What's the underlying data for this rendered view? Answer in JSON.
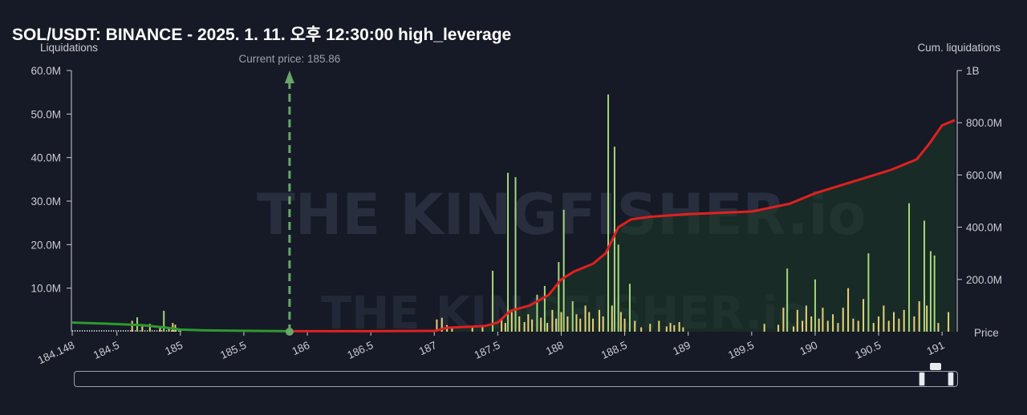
{
  "header": {
    "title": "SOL/USDT: BINANCE - 2025. 1. 11. 오후 12:30:00 high_leverage"
  },
  "watermark": "THE KINGFISHER.io",
  "colors": {
    "background": "#161a26",
    "cum_long": "#2e9a2e",
    "cum_short": "#e02020",
    "bar_green": "#a4d67c",
    "bar_yellow": "#e8d27a",
    "current_price": "#6aa56a"
  },
  "chart_data": {
    "type": "bar",
    "title": "SOL/USDT: BINANCE - 2025. 1. 11. 오후 12:30:00 high_leverage",
    "ylabel": "Liquidations",
    "y2label": "Cum. liquidations",
    "xlabel": "Price",
    "xlim": [
      184.148,
      191.1
    ],
    "ylim": [
      0,
      60000000
    ],
    "y2lim": [
      0,
      1000000000
    ],
    "x_ticks": [
      "184.148",
      "184.5",
      "185",
      "185.5",
      "186",
      "186.5",
      "187",
      "187.5",
      "188",
      "188.5",
      "189",
      "189.5",
      "190",
      "190.5",
      "191"
    ],
    "x_tick_values": [
      184.148,
      184.5,
      185,
      185.5,
      186,
      186.5,
      187,
      187.5,
      188,
      188.5,
      189,
      189.5,
      190,
      190.5,
      191
    ],
    "y_ticks": [
      "60.0M",
      "50.0M",
      "40.0M",
      "30.0M",
      "20.0M",
      "10.0M"
    ],
    "y_tick_values": [
      60000000,
      50000000,
      40000000,
      30000000,
      20000000,
      10000000
    ],
    "y2_ticks": [
      "1B",
      "800.0M",
      "600.0M",
      "400.0M",
      "200.0M"
    ],
    "y2_tick_values": [
      1000000000,
      800000000,
      600000000,
      400000000,
      200000000
    ],
    "current_price": 185.86,
    "current_price_label": "Current price: 185.86",
    "bars": [
      {
        "x": 184.62,
        "v": 2500000.0,
        "c": "y"
      },
      {
        "x": 184.66,
        "v": 3300000.0,
        "c": "g"
      },
      {
        "x": 184.7,
        "v": 1200000.0,
        "c": "y"
      },
      {
        "x": 184.76,
        "v": 1800000.0,
        "c": "y"
      },
      {
        "x": 184.84,
        "v": 1000000.0,
        "c": "y"
      },
      {
        "x": 184.87,
        "v": 4800000.0,
        "c": "g"
      },
      {
        "x": 184.91,
        "v": 800000.0,
        "c": "y"
      },
      {
        "x": 184.94,
        "v": 2000000.0,
        "c": "y"
      },
      {
        "x": 184.96,
        "v": 1600000.0,
        "c": "y"
      },
      {
        "x": 185.0,
        "v": 500000.0,
        "c": "y"
      },
      {
        "x": 187.02,
        "v": 2800000.0,
        "c": "y"
      },
      {
        "x": 187.06,
        "v": 3200000.0,
        "c": "y"
      },
      {
        "x": 187.1,
        "v": 1500000.0,
        "c": "y"
      },
      {
        "x": 187.14,
        "v": 1000000.0,
        "c": "y"
      },
      {
        "x": 187.3,
        "v": 900000.0,
        "c": "y"
      },
      {
        "x": 187.38,
        "v": 1200000.0,
        "c": "y"
      },
      {
        "x": 187.46,
        "v": 14000000.0,
        "c": "g"
      },
      {
        "x": 187.53,
        "v": 3000000.0,
        "c": "y"
      },
      {
        "x": 187.56,
        "v": 2000000.0,
        "c": "y"
      },
      {
        "x": 187.58,
        "v": 36500000.0,
        "c": "g"
      },
      {
        "x": 187.61,
        "v": 4500000.0,
        "c": "y"
      },
      {
        "x": 187.64,
        "v": 35500000.0,
        "c": "g"
      },
      {
        "x": 187.67,
        "v": 3500000.0,
        "c": "y"
      },
      {
        "x": 187.71,
        "v": 2200000.0,
        "c": "y"
      },
      {
        "x": 187.74,
        "v": 4000000.0,
        "c": "y"
      },
      {
        "x": 187.77,
        "v": 2800000.0,
        "c": "y"
      },
      {
        "x": 187.81,
        "v": 8500000.0,
        "c": "g"
      },
      {
        "x": 187.84,
        "v": 3200000.0,
        "c": "y"
      },
      {
        "x": 187.87,
        "v": 10500000.0,
        "c": "g"
      },
      {
        "x": 187.89,
        "v": 2000000.0,
        "c": "y"
      },
      {
        "x": 187.93,
        "v": 5000000.0,
        "c": "y"
      },
      {
        "x": 187.96,
        "v": 3000000.0,
        "c": "y"
      },
      {
        "x": 187.98,
        "v": 16000000.0,
        "c": "g"
      },
      {
        "x": 188.0,
        "v": 4500000.0,
        "c": "y"
      },
      {
        "x": 188.02,
        "v": 28000000.0,
        "c": "g"
      },
      {
        "x": 188.05,
        "v": 3500000.0,
        "c": "y"
      },
      {
        "x": 188.09,
        "v": 7000000.0,
        "c": "g"
      },
      {
        "x": 188.12,
        "v": 4000000.0,
        "c": "y"
      },
      {
        "x": 188.15,
        "v": 3000000.0,
        "c": "y"
      },
      {
        "x": 188.19,
        "v": 6000000.0,
        "c": "y"
      },
      {
        "x": 188.22,
        "v": 4500000.0,
        "c": "y"
      },
      {
        "x": 188.25,
        "v": 3000000.0,
        "c": "y"
      },
      {
        "x": 188.3,
        "v": 5000000.0,
        "c": "y"
      },
      {
        "x": 188.33,
        "v": 3500000.0,
        "c": "y"
      },
      {
        "x": 188.37,
        "v": 54500000.0,
        "c": "g"
      },
      {
        "x": 188.4,
        "v": 6000000.0,
        "c": "y"
      },
      {
        "x": 188.42,
        "v": 42500000.0,
        "c": "g"
      },
      {
        "x": 188.45,
        "v": 20000000.0,
        "c": "g"
      },
      {
        "x": 188.47,
        "v": 4500000.0,
        "c": "y"
      },
      {
        "x": 188.5,
        "v": 3000000.0,
        "c": "y"
      },
      {
        "x": 188.54,
        "v": 11000000.0,
        "c": "g"
      },
      {
        "x": 188.58,
        "v": 2500000.0,
        "c": "y"
      },
      {
        "x": 188.63,
        "v": 1000000.0,
        "c": "y"
      },
      {
        "x": 188.7,
        "v": 1800000.0,
        "c": "y"
      },
      {
        "x": 188.77,
        "v": 2500000.0,
        "c": "y"
      },
      {
        "x": 188.83,
        "v": 1200000.0,
        "c": "y"
      },
      {
        "x": 188.86,
        "v": 2000000.0,
        "c": "y"
      },
      {
        "x": 188.89,
        "v": 1500000.0,
        "c": "y"
      },
      {
        "x": 188.93,
        "v": 2200000.0,
        "c": "y"
      },
      {
        "x": 188.96,
        "v": 1000000.0,
        "c": "y"
      },
      {
        "x": 189.6,
        "v": 1800000.0,
        "c": "y"
      },
      {
        "x": 189.71,
        "v": 1600000.0,
        "c": "y"
      },
      {
        "x": 189.75,
        "v": 5500000.0,
        "c": "y"
      },
      {
        "x": 189.78,
        "v": 14500000.0,
        "c": "g"
      },
      {
        "x": 189.83,
        "v": 1200000.0,
        "c": "y"
      },
      {
        "x": 189.86,
        "v": 5000000.0,
        "c": "y"
      },
      {
        "x": 189.9,
        "v": 2500000.0,
        "c": "y"
      },
      {
        "x": 189.93,
        "v": 6000000.0,
        "c": "y"
      },
      {
        "x": 189.97,
        "v": 3500000.0,
        "c": "y"
      },
      {
        "x": 190.0,
        "v": 12000000.0,
        "c": "g"
      },
      {
        "x": 190.03,
        "v": 3000000.0,
        "c": "y"
      },
      {
        "x": 190.06,
        "v": 5500000.0,
        "c": "y"
      },
      {
        "x": 190.1,
        "v": 2500000.0,
        "c": "y"
      },
      {
        "x": 190.14,
        "v": 4000000.0,
        "c": "y"
      },
      {
        "x": 190.18,
        "v": 2000000.0,
        "c": "y"
      },
      {
        "x": 190.22,
        "v": 5500000.0,
        "c": "y"
      },
      {
        "x": 190.26,
        "v": 10000000.0,
        "c": "y"
      },
      {
        "x": 190.3,
        "v": 3000000.0,
        "c": "y"
      },
      {
        "x": 190.34,
        "v": 2500000.0,
        "c": "y"
      },
      {
        "x": 190.38,
        "v": 7500000.0,
        "c": "y"
      },
      {
        "x": 190.42,
        "v": 18000000.0,
        "c": "g"
      },
      {
        "x": 190.46,
        "v": 2000000.0,
        "c": "y"
      },
      {
        "x": 190.5,
        "v": 3500000.0,
        "c": "y"
      },
      {
        "x": 190.54,
        "v": 6000000.0,
        "c": "y"
      },
      {
        "x": 190.58,
        "v": 2500000.0,
        "c": "y"
      },
      {
        "x": 190.62,
        "v": 4500000.0,
        "c": "y"
      },
      {
        "x": 190.66,
        "v": 3000000.0,
        "c": "y"
      },
      {
        "x": 190.7,
        "v": 5000000.0,
        "c": "y"
      },
      {
        "x": 190.74,
        "v": 29500000.0,
        "c": "g"
      },
      {
        "x": 190.78,
        "v": 3500000.0,
        "c": "y"
      },
      {
        "x": 190.82,
        "v": 7000000.0,
        "c": "y"
      },
      {
        "x": 190.86,
        "v": 25500000.0,
        "c": "g"
      },
      {
        "x": 190.88,
        "v": 6000000.0,
        "c": "y"
      },
      {
        "x": 190.91,
        "v": 18500000.0,
        "c": "g"
      },
      {
        "x": 190.94,
        "v": 17500000.0,
        "c": "g"
      },
      {
        "x": 190.97,
        "v": 2000000.0,
        "c": "y"
      },
      {
        "x": 191.05,
        "v": 4500000.0,
        "c": "y"
      }
    ],
    "cum_long": [
      [
        184.148,
        35000000.0
      ],
      [
        184.4,
        31000000.0
      ],
      [
        184.7,
        25000000.0
      ],
      [
        184.9,
        15000000.0
      ],
      [
        185.0,
        8000000.0
      ],
      [
        185.2,
        5000000.0
      ],
      [
        185.5,
        3500000.0
      ],
      [
        185.86,
        2000000.0
      ]
    ],
    "cum_short": [
      [
        185.86,
        2000000.0
      ],
      [
        186.5,
        2000000.0
      ],
      [
        187.0,
        3000000.0
      ],
      [
        187.1,
        15000000.0
      ],
      [
        187.4,
        22000000.0
      ],
      [
        187.5,
        35000000.0
      ],
      [
        187.6,
        80000000.0
      ],
      [
        187.75,
        100000000.0
      ],
      [
        187.9,
        140000000.0
      ],
      [
        188.0,
        200000000.0
      ],
      [
        188.1,
        230000000.0
      ],
      [
        188.25,
        260000000.0
      ],
      [
        188.35,
        300000000.0
      ],
      [
        188.45,
        400000000.0
      ],
      [
        188.55,
        430000000.0
      ],
      [
        188.7,
        440000000.0
      ],
      [
        189.0,
        450000000.0
      ],
      [
        189.5,
        460000000.0
      ],
      [
        189.8,
        490000000.0
      ],
      [
        190.0,
        530000000.0
      ],
      [
        190.2,
        560000000.0
      ],
      [
        190.4,
        590000000.0
      ],
      [
        190.6,
        620000000.0
      ],
      [
        190.8,
        660000000.0
      ],
      [
        190.9,
        720000000.0
      ],
      [
        191.0,
        790000000.0
      ],
      [
        191.1,
        810000000.0
      ]
    ]
  }
}
